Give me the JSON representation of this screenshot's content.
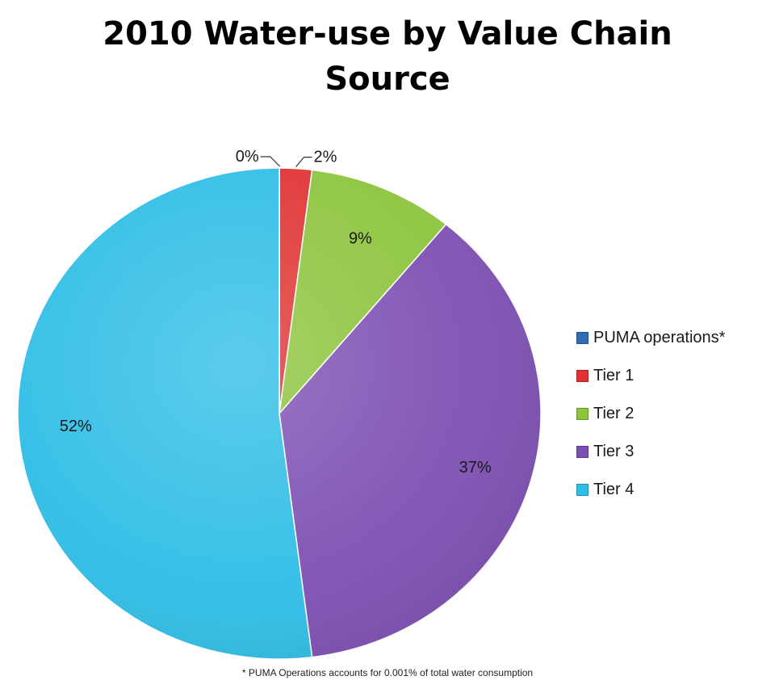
{
  "chart_data": {
    "type": "pie",
    "title_lines": [
      "2010 Water-use by Value Chain",
      "Source"
    ],
    "slices": [
      {
        "name": "PUMA operations*",
        "legend_label": "PUMA operations*",
        "value": 0.001,
        "label": "0%",
        "color": "#2f6db3"
      },
      {
        "name": "Tier 1",
        "legend_label": "Tier 1",
        "value": 2,
        "label": "2%",
        "color": "#e03232"
      },
      {
        "name": "Tier 2",
        "legend_label": "Tier 2",
        "value": 9,
        "label": "9%",
        "color": "#8cc43c"
      },
      {
        "name": "Tier 3",
        "legend_label": "Tier 3",
        "value": 37,
        "label": "37%",
        "color": "#7d4fb3"
      },
      {
        "name": "Tier 4",
        "legend_label": "Tier 4",
        "value": 52,
        "label": "52%",
        "color": "#2ebde6"
      }
    ],
    "legend_position": "right",
    "footnote": "* PUMA Operations accounts for 0.001% of total water consumption"
  }
}
